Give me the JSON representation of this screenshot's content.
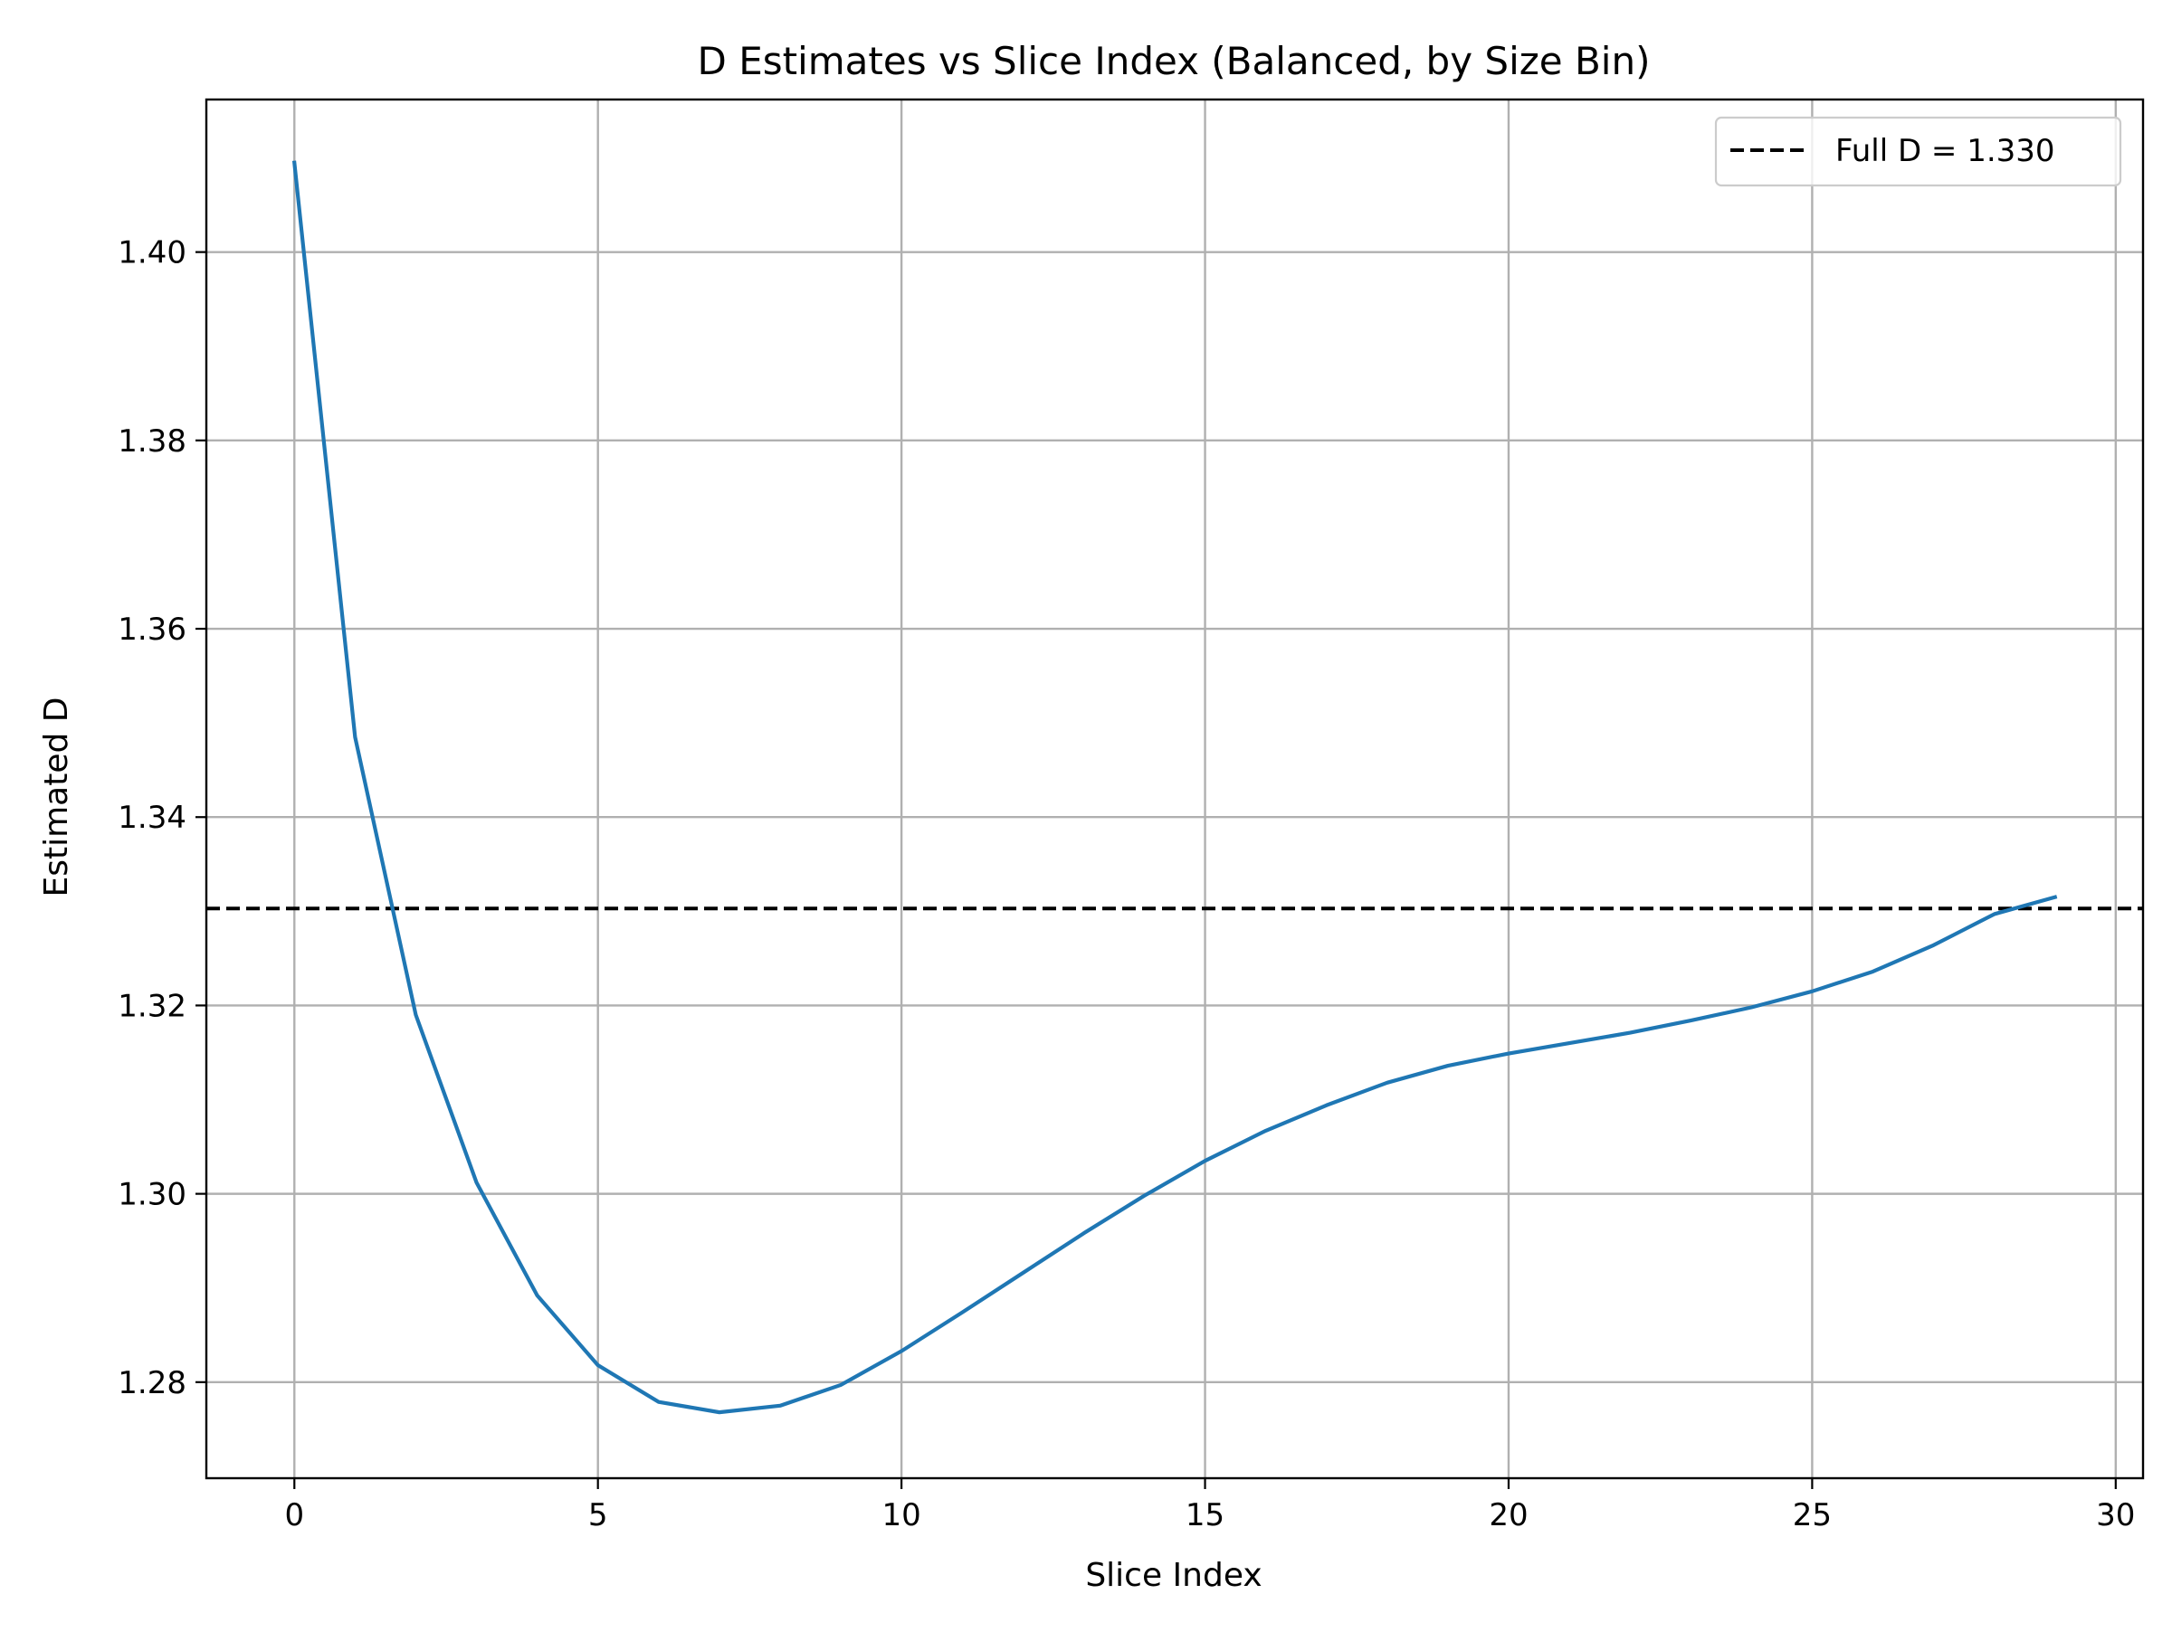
{
  "chart_data": {
    "type": "line",
    "title": "D Estimates vs Slice Index (Balanced, by Size Bin)",
    "xlabel": "Slice Index",
    "ylabel": "Estimated D",
    "xlim": [
      -1.45,
      30.45
    ],
    "ylim": [
      1.2698,
      1.4162
    ],
    "xticks": [
      0,
      5,
      10,
      15,
      20,
      25,
      30
    ],
    "xtick_labels": [
      "0",
      "5",
      "10",
      "15",
      "20",
      "25",
      "30"
    ],
    "yticks": [
      1.28,
      1.3,
      1.32,
      1.34,
      1.36,
      1.38,
      1.4
    ],
    "ytick_labels": [
      "1.28",
      "1.30",
      "1.32",
      "1.34",
      "1.36",
      "1.38",
      "1.40"
    ],
    "grid": true,
    "legend_placement": "top-right",
    "series": [
      {
        "color": "#1f77b4",
        "x": [
          0,
          1,
          2,
          3,
          4,
          5,
          6,
          7,
          8,
          9,
          10,
          11,
          12,
          13,
          14,
          15,
          16,
          17,
          18,
          19,
          20,
          21,
          22,
          23,
          24,
          25,
          26,
          27,
          28,
          29
        ],
        "values": [
          1.4095,
          1.3485,
          1.319,
          1.3012,
          1.2892,
          1.2818,
          1.2779,
          1.2768,
          1.2775,
          1.2797,
          1.2833,
          1.2874,
          1.2916,
          1.2958,
          1.2998,
          1.3035,
          1.3067,
          1.3094,
          1.3118,
          1.3136,
          1.3149,
          1.316,
          1.3171,
          1.3184,
          1.3198,
          1.3215,
          1.3236,
          1.3264,
          1.3297,
          1.3315
        ]
      }
    ],
    "reference_line": {
      "label": "Full D = 1.330",
      "y": 1.3303,
      "color": "#000000",
      "style": "dashed"
    }
  }
}
